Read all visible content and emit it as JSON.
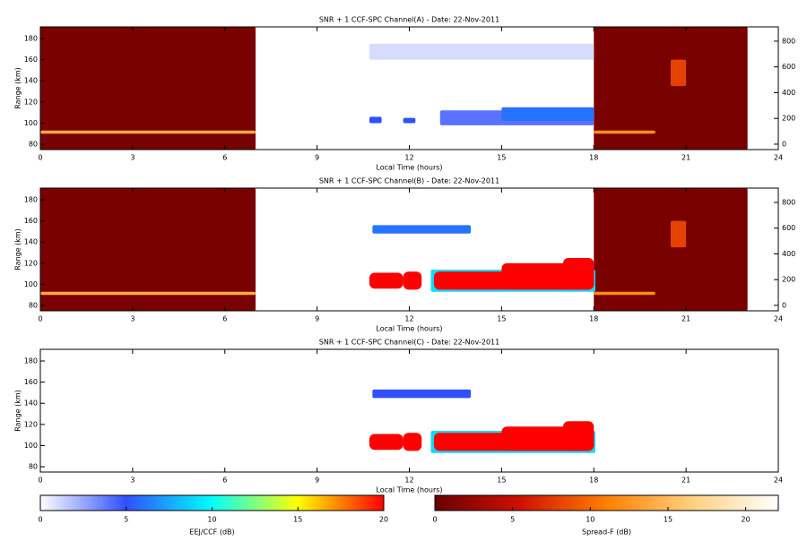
{
  "chart_data": [
    {
      "type": "heatmap",
      "title": "SNR + 1 CCF-SPC Channel(A) - Date: 22-Nov-2011",
      "xlabel": "Local Time (hours)",
      "ylabel": "Range (km)",
      "xlim": [
        0,
        24
      ],
      "xticks": [
        0,
        3,
        6,
        9,
        12,
        15,
        18,
        21,
        24
      ],
      "ylim": [
        75,
        191
      ],
      "yticks": [
        80,
        100,
        120,
        140,
        160,
        180
      ],
      "y2lim": [
        -42,
        911
      ],
      "y2ticks": [
        0,
        200,
        400,
        600,
        800
      ],
      "spread_f_echoes": [
        {
          "x": [
            0,
            7
          ],
          "y": [
            75,
            191
          ],
          "value": 0.8
        },
        {
          "x": [
            0,
            7
          ],
          "y": [
            90,
            93
          ],
          "value": 14
        },
        {
          "x": [
            18,
            23
          ],
          "y": [
            75,
            191
          ],
          "value": 0.8
        },
        {
          "x": [
            18,
            20
          ],
          "y": [
            90,
            93
          ],
          "value": 12
        },
        {
          "x": [
            20.5,
            21
          ],
          "y": [
            135,
            160
          ],
          "value": 8
        }
      ],
      "eej_echoes": [
        {
          "x": [
            10.7,
            18
          ],
          "y": [
            160,
            175
          ],
          "value": 1
        },
        {
          "x": [
            10.7,
            11.1
          ],
          "y": [
            100,
            106
          ],
          "value": 5
        },
        {
          "x": [
            11.8,
            12.2
          ],
          "y": [
            100,
            105
          ],
          "value": 5
        },
        {
          "x": [
            13,
            18
          ],
          "y": [
            98,
            112
          ],
          "value": 4
        },
        {
          "x": [
            15,
            18
          ],
          "y": [
            102,
            115
          ],
          "value": 6
        }
      ]
    },
    {
      "type": "heatmap",
      "title": "SNR + 1 CCF-SPC Channel(B) - Date: 22-Nov-2011",
      "xlabel": "Local Time (hours)",
      "ylabel": "Range (km)",
      "xlim": [
        0,
        24
      ],
      "xticks": [
        0,
        3,
        6,
        9,
        12,
        15,
        18,
        21,
        24
      ],
      "ylim": [
        75,
        191
      ],
      "yticks": [
        80,
        100,
        120,
        140,
        160,
        180
      ],
      "y2lim": [
        -42,
        911
      ],
      "y2ticks": [
        0,
        200,
        400,
        600,
        800
      ],
      "spread_f_echoes": [
        {
          "x": [
            0,
            7
          ],
          "y": [
            75,
            191
          ],
          "value": 0.8
        },
        {
          "x": [
            0,
            7
          ],
          "y": [
            90,
            93
          ],
          "value": 14
        },
        {
          "x": [
            18,
            23
          ],
          "y": [
            75,
            191
          ],
          "value": 0.8
        },
        {
          "x": [
            18,
            20
          ],
          "y": [
            90,
            93
          ],
          "value": 12
        },
        {
          "x": [
            20.5,
            21
          ],
          "y": [
            135,
            160
          ],
          "value": 8
        }
      ],
      "eej_echoes": [
        {
          "x": [
            10.8,
            14
          ],
          "y": [
            148,
            156
          ],
          "value": 6
        },
        {
          "x": [
            12.7,
            18.05
          ],
          "y": [
            93,
            114
          ],
          "value": 9
        },
        {
          "x": [
            10.7,
            11.8
          ],
          "y": [
            96,
            111
          ],
          "value": 20
        },
        {
          "x": [
            11.8,
            12.4
          ],
          "y": [
            95,
            112
          ],
          "value": 20
        },
        {
          "x": [
            12.8,
            18
          ],
          "y": [
            95,
            112
          ],
          "value": 20
        },
        {
          "x": [
            15,
            18
          ],
          "y": [
            95,
            120
          ],
          "value": 20
        },
        {
          "x": [
            17,
            18
          ],
          "y": [
            95,
            125
          ],
          "value": 20
        }
      ]
    },
    {
      "type": "heatmap",
      "title": "SNR + 1 CCF-SPC Channel(C) - Date: 22-Nov-2011",
      "xlabel": "Local Time (hours)",
      "ylabel": "Range (km)",
      "xlim": [
        0,
        24
      ],
      "xticks": [
        0,
        3,
        6,
        9,
        12,
        15,
        18,
        21,
        24
      ],
      "ylim": [
        75,
        191
      ],
      "yticks": [
        80,
        100,
        120,
        140,
        160,
        180
      ],
      "spread_f_echoes": [],
      "eej_echoes": [
        {
          "x": [
            10.8,
            14
          ],
          "y": [
            145,
            153
          ],
          "value": 5
        },
        {
          "x": [
            12.7,
            18.05
          ],
          "y": [
            93,
            114
          ],
          "value": 9
        },
        {
          "x": [
            10.7,
            11.8
          ],
          "y": [
            96,
            111
          ],
          "value": 20
        },
        {
          "x": [
            11.8,
            12.4
          ],
          "y": [
            95,
            112
          ],
          "value": 20
        },
        {
          "x": [
            12.8,
            18
          ],
          "y": [
            95,
            112
          ],
          "value": 20
        },
        {
          "x": [
            15,
            18
          ],
          "y": [
            95,
            118
          ],
          "value": 20
        },
        {
          "x": [
            17,
            18
          ],
          "y": [
            95,
            123
          ],
          "value": 20
        }
      ]
    },
    {
      "type": "colorbar",
      "label": "EEJ/CCF (dB)",
      "xlim": [
        0,
        20
      ],
      "xticks": [
        0,
        5,
        10,
        15,
        20
      ],
      "colors": [
        "#ffffff",
        "#3050ff",
        "#00ffff",
        "#ffff00",
        "#ff0000"
      ]
    },
    {
      "type": "colorbar",
      "label": "Spread-F (dB)",
      "xlim": [
        0,
        22.1
      ],
      "xticks": [
        0,
        5,
        10,
        15,
        20
      ],
      "colors": [
        "#6a0000",
        "#d01000",
        "#ff8000",
        "#ffd080",
        "#ffffff"
      ]
    }
  ]
}
